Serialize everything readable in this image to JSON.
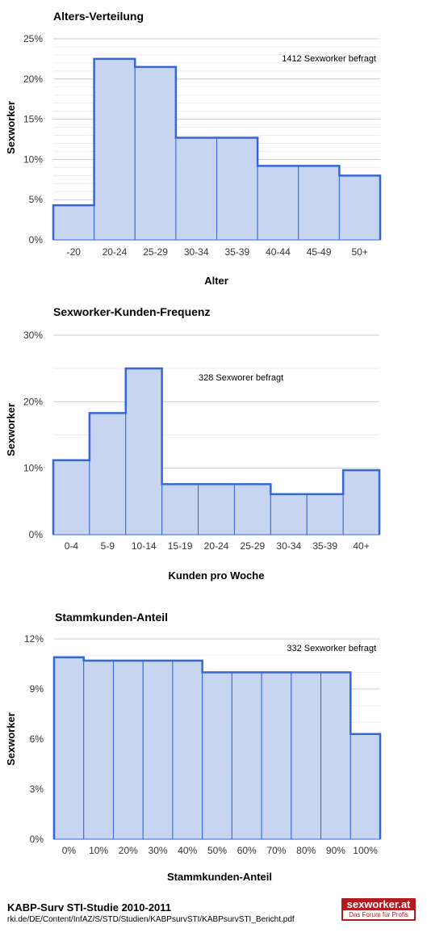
{
  "charts": [
    {
      "title": "Alters-Verteilung",
      "note": "1412 Sexworker befragt",
      "xlabel": "Alter",
      "ylabel": "Sexworker",
      "ytick_labels": [
        "0%",
        "5%",
        "10%",
        "15%",
        "20%",
        "25%"
      ],
      "categories": [
        "-20",
        "20-24",
        "25-29",
        "30-34",
        "35-39",
        "40-44",
        "45-49",
        "50+"
      ]
    },
    {
      "title": "Sexworker-Kunden-Frequenz",
      "note": "328 Sexworer befragt",
      "xlabel": "Kunden pro Woche",
      "ylabel": "Sexworker",
      "ytick_labels": [
        "0%",
        "10%",
        "20%",
        "30%"
      ],
      "categories": [
        "0-4",
        "5-9",
        "10-14",
        "15-19",
        "20-24",
        "25-29",
        "30-34",
        "35-39",
        "40+"
      ]
    },
    {
      "title": "Stammkunden-Anteil",
      "note": "332 Sexworker befragt",
      "xlabel": "Stammkunden-Anteil",
      "ylabel": "Sexworker",
      "ytick_labels": [
        "0%",
        "3%",
        "6%",
        "9%",
        "12%"
      ],
      "categories": [
        "0%",
        "10%",
        "20%",
        "30%",
        "40%",
        "50%",
        "60%",
        "70%",
        "80%",
        "90%",
        "100%"
      ]
    }
  ],
  "chart_data": [
    {
      "type": "bar",
      "title": "Alters-Verteilung",
      "xlabel": "Alter",
      "ylabel": "Sexworker",
      "categories": [
        "-20",
        "20-24",
        "25-29",
        "30-34",
        "35-39",
        "40-44",
        "45-49",
        "50+"
      ],
      "values": [
        4.3,
        22.5,
        21.5,
        12.7,
        12.7,
        9.2,
        9.2,
        8.0
      ],
      "unit": "%",
      "ylim": [
        0,
        25
      ],
      "grid": true,
      "bar_color": "#c5d3f0",
      "edge_color": "#3567d6"
    },
    {
      "type": "bar",
      "title": "Sexworker-Kunden-Frequenz",
      "xlabel": "Kunden pro Woche",
      "ylabel": "Sexworker",
      "categories": [
        "0-4",
        "5-9",
        "10-14",
        "15-19",
        "20-24",
        "25-29",
        "30-34",
        "35-39",
        "40+"
      ],
      "values": [
        11.2,
        18.3,
        25.0,
        7.6,
        7.6,
        7.6,
        6.1,
        6.1,
        9.7
      ],
      "unit": "%",
      "ylim": [
        0,
        30
      ],
      "grid": true,
      "bar_color": "#c5d3f0",
      "edge_color": "#3567d6"
    },
    {
      "type": "bar",
      "title": "Stammkunden-Anteil",
      "xlabel": "Stammkunden-Anteil",
      "ylabel": "Sexworker",
      "categories": [
        "0%",
        "10%",
        "20%",
        "30%",
        "40%",
        "50%",
        "60%",
        "70%",
        "80%",
        "90%",
        "100%"
      ],
      "values": [
        10.9,
        10.7,
        10.7,
        10.7,
        10.7,
        10.0,
        10.0,
        10.0,
        10.0,
        10.0,
        6.3
      ],
      "unit": "%",
      "ylim": [
        0,
        12
      ],
      "grid": true,
      "bar_color": "#c5d3f0",
      "edge_color": "#3567d6"
    }
  ],
  "footer": {
    "title": "KABP-Surv STI-Studie 2010-2011",
    "source": "rki.de/DE/Content/InfAZ/S/STD/Studien/KABPsurvSTI/KABPsurvSTI_Bericht.pdf"
  },
  "logo": {
    "name": "sexworker.at",
    "tagline": "Das Forum für Profis",
    "color": "#b3191e"
  }
}
